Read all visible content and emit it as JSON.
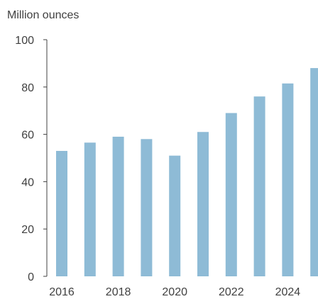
{
  "chart_data": {
    "type": "bar",
    "ylabel": "Million ounces",
    "xlabel": "",
    "title": "",
    "ylim": [
      0,
      100
    ],
    "yticks": [
      0,
      20,
      40,
      60,
      80,
      100
    ],
    "categories": [
      "2016",
      "2017",
      "2018",
      "2019",
      "2020",
      "2021",
      "2022",
      "2023",
      "2024",
      "2025"
    ],
    "x_tick_labels": [
      "2016",
      "2018",
      "2020",
      "2022",
      "2024"
    ],
    "values": [
      53,
      56.5,
      59,
      58,
      51,
      61,
      69,
      76,
      81.5,
      88
    ],
    "bar_color": "#8ebbd6",
    "axis_color": "#404040",
    "grid": false
  }
}
